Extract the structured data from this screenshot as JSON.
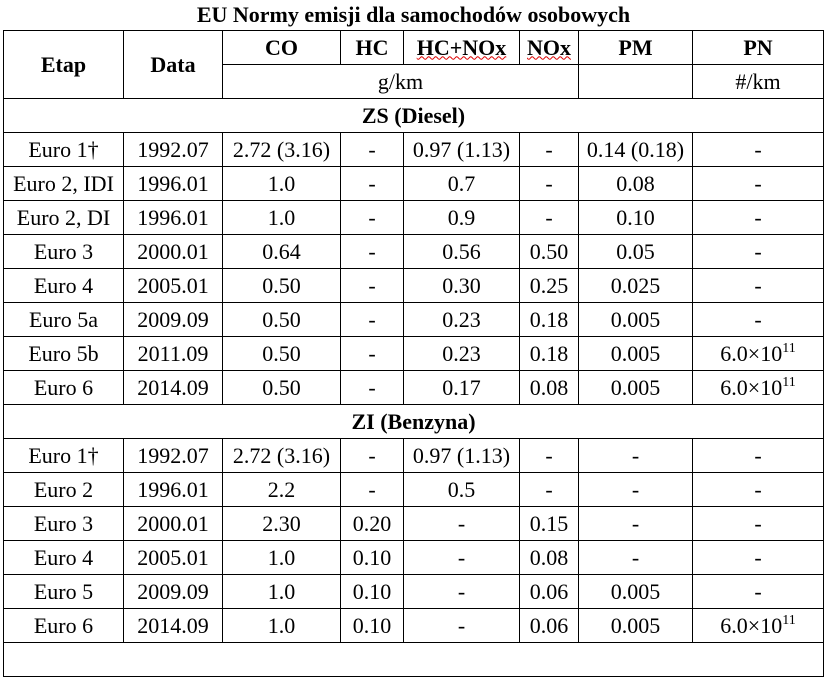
{
  "title": "EU Normy emisji dla samochodów osobowych",
  "table": {
    "header": [
      "Etap",
      "Data",
      "CO",
      "HC",
      "HC+NOx",
      "NOx",
      "PM",
      "PN"
    ],
    "units": {
      "gas": "g/km",
      "pn": "#/km"
    },
    "sections": [
      {
        "label": "ZS (Diesel)",
        "rows": [
          [
            "Euro 1†",
            "1992.07",
            "2.72 (3.16)",
            "-",
            "0.97 (1.13)",
            "-",
            "0.14 (0.18)",
            "-"
          ],
          [
            "Euro 2, IDI",
            "1996.01",
            "1.0",
            "-",
            "0.7",
            "-",
            "0.08",
            "-"
          ],
          [
            "Euro 2, DI",
            "1996.01",
            "1.0",
            "-",
            "0.9",
            "-",
            "0.10",
            "-"
          ],
          [
            "Euro 3",
            "2000.01",
            "0.64",
            "-",
            "0.56",
            "0.50",
            "0.05",
            "-"
          ],
          [
            "Euro 4",
            "2005.01",
            "0.50",
            "-",
            "0.30",
            "0.25",
            "0.025",
            "-"
          ],
          [
            "Euro 5a",
            "2009.09",
            "0.50",
            "-",
            "0.23",
            "0.18",
            "0.005",
            "-"
          ],
          [
            "Euro 5b",
            "2011.09",
            "0.50",
            "-",
            "0.23",
            "0.18",
            "0.005",
            {
              "base": "6.0×10",
              "sup": "11"
            }
          ],
          [
            "Euro 6",
            "2014.09",
            "0.50",
            "-",
            "0.17",
            "0.08",
            "0.005",
            {
              "base": "6.0×10",
              "sup": "11"
            }
          ]
        ]
      },
      {
        "label": "ZI (Benzyna)",
        "rows": [
          [
            "Euro 1†",
            "1992.07",
            "2.72 (3.16)",
            "-",
            "0.97 (1.13)",
            "-",
            "-",
            "-"
          ],
          [
            "Euro 2",
            "1996.01",
            "2.2",
            "-",
            "0.5",
            "-",
            "-",
            "-"
          ],
          [
            "Euro 3",
            "2000.01",
            "2.30",
            "0.20",
            "-",
            "0.15",
            "-",
            "-"
          ],
          [
            "Euro 4",
            "2005.01",
            "1.0",
            "0.10",
            "-",
            "0.08",
            "-",
            "-"
          ],
          [
            "Euro 5",
            "2009.09",
            "1.0",
            "0.10",
            "-",
            "0.06",
            "0.005",
            "-"
          ],
          [
            "Euro 6",
            "2014.09",
            "1.0",
            "0.10",
            "-",
            "0.06",
            "0.005",
            {
              "base": "6.0×10",
              "sup": "11"
            }
          ]
        ]
      }
    ]
  }
}
